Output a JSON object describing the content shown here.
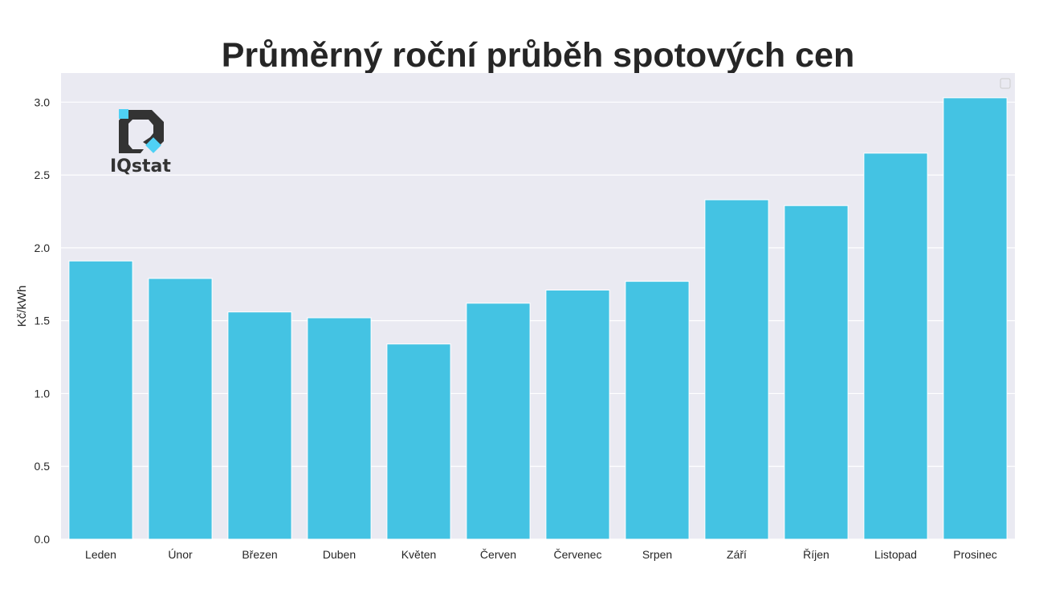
{
  "chart_data": {
    "type": "bar",
    "title": "Průměrný roční průběh spotových cen",
    "xlabel": "",
    "ylabel": "Kč/kWh",
    "categories": [
      "Leden",
      "Únor",
      "Březen",
      "Duben",
      "Květen",
      "Červen",
      "Červenec",
      "Srpen",
      "Září",
      "Říjen",
      "Listopad",
      "Prosinec"
    ],
    "values": [
      1.91,
      1.79,
      1.56,
      1.52,
      1.34,
      1.62,
      1.71,
      1.77,
      2.33,
      2.29,
      2.65,
      3.03
    ],
    "ylim": [
      0,
      3.2
    ],
    "yticks": [
      0.0,
      0.5,
      1.0,
      1.5,
      2.0,
      2.5,
      3.0
    ],
    "ytick_labels": [
      "0.0",
      "0.5",
      "1.0",
      "1.5",
      "2.0",
      "2.5",
      "3.0"
    ],
    "grid": true,
    "legend": "top-right (empty)",
    "bar_color": "#44c3e3",
    "background_color": "#eaeaf2"
  },
  "logo": {
    "text": "IQstat",
    "accent_color": "#4fd1f5",
    "dark_color": "#333333"
  }
}
